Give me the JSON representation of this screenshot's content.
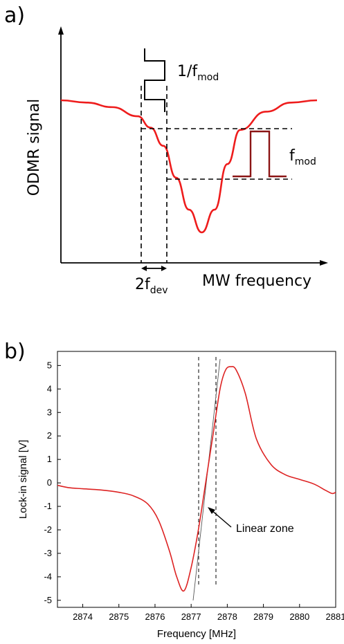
{
  "panel_a": {
    "label": "a)",
    "y_axis_label": "ODMR signal",
    "x_axis_label": "MW frequency",
    "period_label_main": "1/f",
    "period_label_sub": "mod",
    "mod_label_main": "f",
    "mod_label_sub": "mod",
    "dev_label_main": "2f",
    "dev_label_sub": "dev"
  },
  "panel_b": {
    "label": "b)",
    "annotation": "Linear zone"
  },
  "chart_data": [
    {
      "type": "line",
      "title": "",
      "xlabel": "MW frequency",
      "ylabel": "ODMR signal",
      "series": [
        {
          "x": [
            0.0,
            0.1,
            0.2,
            0.3,
            0.35,
            0.4,
            0.45,
            0.5,
            0.55,
            0.6,
            0.65,
            0.7,
            0.8,
            0.9,
            1.0
          ],
          "values": [
            0.58,
            0.57,
            0.55,
            0.51,
            0.46,
            0.38,
            0.24,
            0.1,
            0.0,
            0.1,
            0.3,
            0.45,
            0.53,
            0.57,
            0.58
          ]
        }
      ],
      "color": "#ee1c1c"
    },
    {
      "type": "line",
      "title": "",
      "xlabel": "Frequency [MHz]",
      "ylabel": "Lock-in signal [V]",
      "xlim": [
        2873.3,
        2881
      ],
      "ylim": [
        -5.3,
        5.6
      ],
      "xticks": [
        2874,
        2875,
        2876,
        2877,
        2878,
        2879,
        2880,
        2881
      ],
      "yticks": [
        -5,
        -4,
        -3,
        -2,
        -1,
        0,
        1,
        2,
        3,
        4,
        5
      ],
      "series": [
        {
          "x": [
            2873.3,
            2873.6,
            2874.0,
            2874.5,
            2875.0,
            2875.4,
            2875.8,
            2876.1,
            2876.4,
            2876.6,
            2876.8,
            2877.0,
            2877.2,
            2877.4,
            2877.6,
            2877.8,
            2877.95,
            2878.1,
            2878.25,
            2878.5,
            2878.8,
            2879.2,
            2879.6,
            2880.0,
            2880.4,
            2880.7,
            2880.9,
            2881.0
          ],
          "values": [
            -0.1,
            -0.2,
            -0.25,
            -0.3,
            -0.4,
            -0.55,
            -0.9,
            -1.6,
            -2.9,
            -4.0,
            -4.6,
            -3.6,
            -2.0,
            0.0,
            2.0,
            4.0,
            4.8,
            4.95,
            4.8,
            3.8,
            1.9,
            0.8,
            0.35,
            0.15,
            -0.05,
            -0.3,
            -0.45,
            -0.4
          ]
        }
      ],
      "color": "#dd2222",
      "annotations": [
        "Linear zone"
      ]
    }
  ]
}
